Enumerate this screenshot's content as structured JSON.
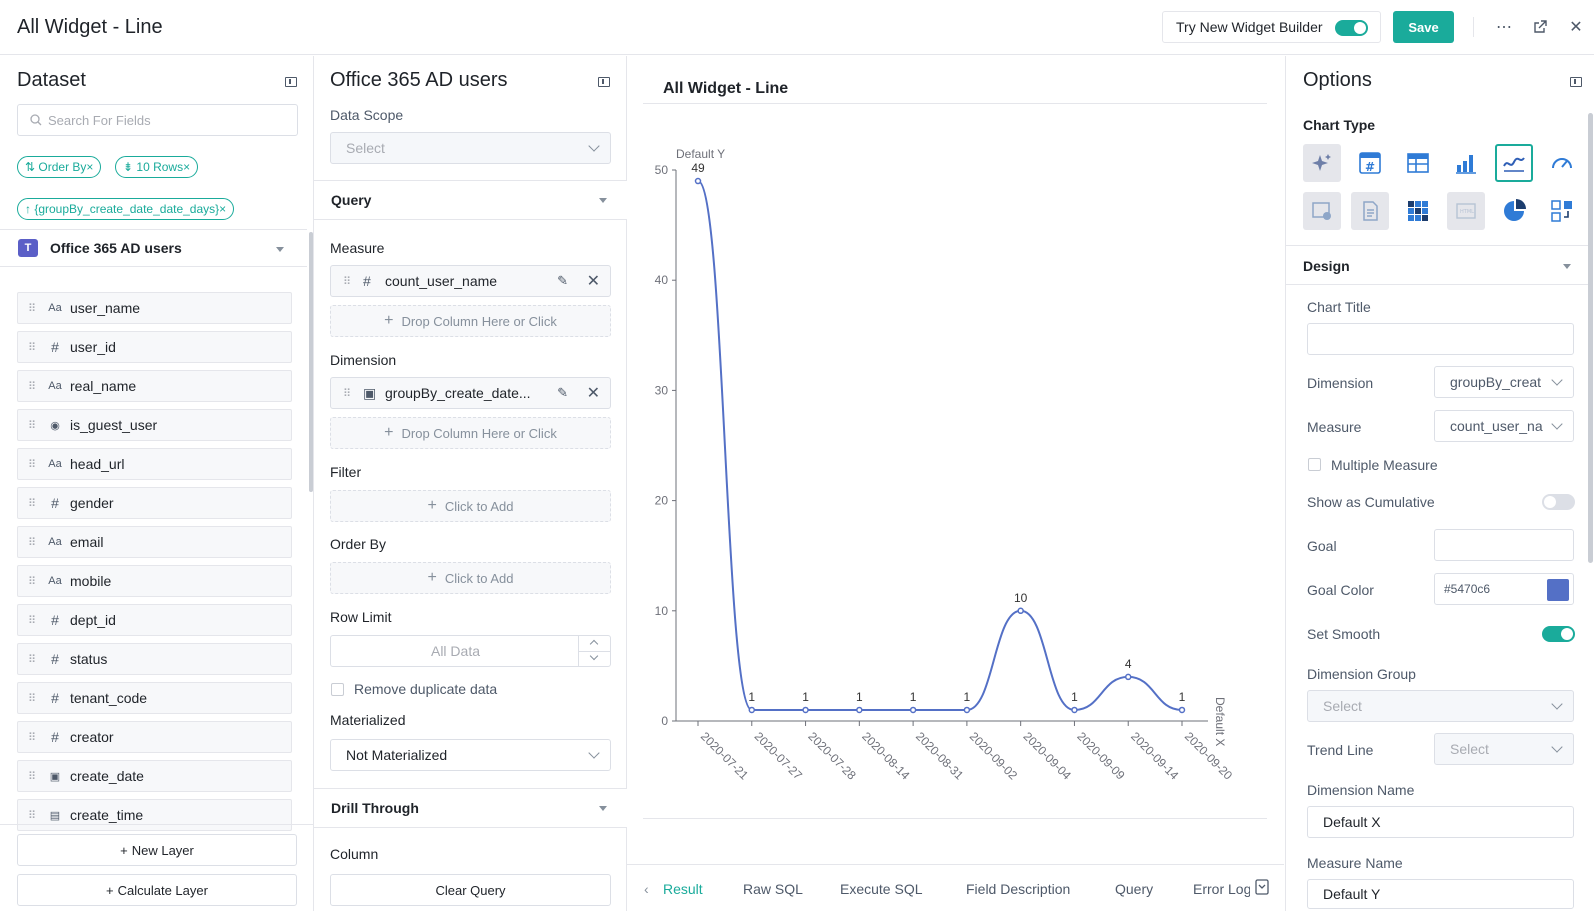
{
  "app": {
    "title": "All Widget - Line",
    "try_builder_label": "Try New Widget Builder",
    "save_label": "Save"
  },
  "dataset": {
    "title": "Dataset",
    "search_placeholder": "Search For Fields",
    "chips": {
      "order_by": "⇅ Order By",
      "rows": "⇟ 10 Rows",
      "group_by": "↑ {groupBy_create_date_date_days}"
    },
    "source_name": "Office 365 AD users",
    "fields": [
      {
        "type": "Aa",
        "name": "user_name"
      },
      {
        "type": "#",
        "name": "user_id"
      },
      {
        "type": "Aa",
        "name": "real_name"
      },
      {
        "type": "◉",
        "name": "is_guest_user"
      },
      {
        "type": "Aa",
        "name": "head_url"
      },
      {
        "type": "#",
        "name": "gender"
      },
      {
        "type": "Aa",
        "name": "email"
      },
      {
        "type": "Aa",
        "name": "mobile"
      },
      {
        "type": "#",
        "name": "dept_id"
      },
      {
        "type": "#",
        "name": "status"
      },
      {
        "type": "#",
        "name": "tenant_code"
      },
      {
        "type": "#",
        "name": "creator"
      },
      {
        "type": "▣",
        "name": "create_date"
      },
      {
        "type": "▤",
        "name": "create_time"
      }
    ],
    "new_layer": "New Layer",
    "calc_layer": "Calculate Layer"
  },
  "query": {
    "title": "Office 365 AD users",
    "data_scope_label": "Data Scope",
    "data_scope_placeholder": "Select",
    "section_query": "Query",
    "measure_label": "Measure",
    "measure_value": "count_user_name",
    "drop_hint": "Drop Column Here or Click",
    "dimension_label": "Dimension",
    "dimension_value": "groupBy_create_date...",
    "filter_label": "Filter",
    "click_to_add": "Click to Add",
    "order_by_label": "Order By",
    "row_limit_label": "Row Limit",
    "row_limit_placeholder": "All Data",
    "remove_dup_label": "Remove duplicate data",
    "materialized_label": "Materialized",
    "materialized_value": "Not Materialized",
    "drill_through": "Drill Through",
    "column_label": "Column",
    "clear_query": "Clear Query"
  },
  "chart_data": {
    "type": "line",
    "title": "All Widget - Line",
    "xlabel": "Default X",
    "ylabel": "Default Y",
    "categories": [
      "2020-07-21",
      "2020-07-27",
      "2020-07-28",
      "2020-08-14",
      "2020-08-31",
      "2020-09-02",
      "2020-09-04",
      "2020-09-09",
      "2020-09-14",
      "2020-09-20"
    ],
    "values": [
      49,
      1,
      1,
      1,
      1,
      1,
      10,
      1,
      4,
      1
    ],
    "ylim": [
      0,
      50
    ],
    "yticks": [
      0,
      10,
      20,
      30,
      40,
      50
    ],
    "smooth": true,
    "color": "#5470c6"
  },
  "result_tabs": [
    "Result",
    "Raw SQL",
    "Execute SQL",
    "Field Description",
    "Query",
    "Error Log"
  ],
  "options": {
    "title": "Options",
    "chart_type_label": "Chart Type",
    "design_label": "Design",
    "chart_title_label": "Chart Title",
    "chart_title_value": "",
    "dimension_label": "Dimension",
    "dimension_value": "groupBy_creat",
    "measure_label": "Measure",
    "measure_value": "count_user_na",
    "multiple_measure_label": "Multiple Measure",
    "cumulative_label": "Show as Cumulative",
    "goal_label": "Goal",
    "goal_value": "",
    "goal_color_label": "Goal Color",
    "goal_color_value": "#5470c6",
    "smooth_label": "Set Smooth",
    "dim_group_label": "Dimension Group",
    "dim_group_placeholder": "Select",
    "trend_line_label": "Trend Line",
    "trend_line_placeholder": "Select",
    "dim_name_label": "Dimension Name",
    "dim_name_value": "Default X",
    "measure_name_label": "Measure Name",
    "measure_name_value": "Default Y"
  },
  "colors": {
    "accent": "#1aab9b",
    "series": "#5470c6"
  }
}
